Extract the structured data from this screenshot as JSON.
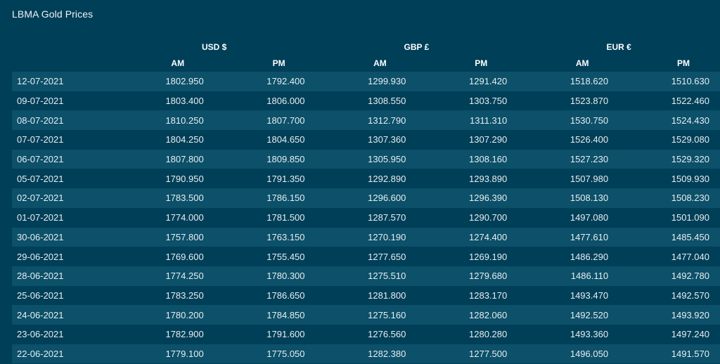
{
  "title": "LBMA Gold Prices",
  "currencies": [
    {
      "label": "USD $",
      "am": "AM",
      "pm": "PM"
    },
    {
      "label": "GBP £",
      "am": "AM",
      "pm": "PM"
    },
    {
      "label": "EUR €",
      "am": "AM",
      "pm": "PM"
    }
  ],
  "rows": [
    {
      "date": "12-07-2021",
      "values": [
        "1802.950",
        "1792.400",
        "1299.930",
        "1291.420",
        "1518.620",
        "1510.630"
      ]
    },
    {
      "date": "09-07-2021",
      "values": [
        "1803.400",
        "1806.000",
        "1308.550",
        "1303.750",
        "1523.870",
        "1522.460"
      ]
    },
    {
      "date": "08-07-2021",
      "values": [
        "1810.250",
        "1807.700",
        "1312.790",
        "1311.310",
        "1530.750",
        "1524.430"
      ]
    },
    {
      "date": "07-07-2021",
      "values": [
        "1804.250",
        "1804.650",
        "1307.360",
        "1307.290",
        "1526.400",
        "1529.080"
      ]
    },
    {
      "date": "06-07-2021",
      "values": [
        "1807.800",
        "1809.850",
        "1305.950",
        "1308.160",
        "1527.230",
        "1529.320"
      ]
    },
    {
      "date": "05-07-2021",
      "values": [
        "1790.950",
        "1791.350",
        "1292.890",
        "1293.890",
        "1507.980",
        "1509.930"
      ]
    },
    {
      "date": "02-07-2021",
      "values": [
        "1783.500",
        "1786.150",
        "1296.600",
        "1296.390",
        "1508.130",
        "1508.230"
      ]
    },
    {
      "date": "01-07-2021",
      "values": [
        "1774.000",
        "1781.500",
        "1287.570",
        "1290.700",
        "1497.080",
        "1501.090"
      ]
    },
    {
      "date": "30-06-2021",
      "values": [
        "1757.800",
        "1763.150",
        "1270.190",
        "1274.400",
        "1477.610",
        "1485.450"
      ]
    },
    {
      "date": "29-06-2021",
      "values": [
        "1769.600",
        "1755.450",
        "1277.650",
        "1269.190",
        "1486.290",
        "1477.040"
      ]
    },
    {
      "date": "28-06-2021",
      "values": [
        "1774.250",
        "1780.300",
        "1275.510",
        "1279.680",
        "1486.110",
        "1492.780"
      ]
    },
    {
      "date": "25-06-2021",
      "values": [
        "1783.250",
        "1786.650",
        "1281.800",
        "1283.170",
        "1493.470",
        "1492.570"
      ]
    },
    {
      "date": "24-06-2021",
      "values": [
        "1780.200",
        "1784.850",
        "1275.160",
        "1282.060",
        "1492.520",
        "1493.920"
      ]
    },
    {
      "date": "23-06-2021",
      "values": [
        "1782.900",
        "1791.600",
        "1276.560",
        "1280.280",
        "1493.360",
        "1497.240"
      ]
    },
    {
      "date": "22-06-2021",
      "values": [
        "1779.100",
        "1775.050",
        "1282.380",
        "1277.500",
        "1496.050",
        "1491.570"
      ]
    }
  ],
  "colors": {
    "background": "#003f58",
    "row_stripe": "#0c5069",
    "text": "#ffffff"
  }
}
